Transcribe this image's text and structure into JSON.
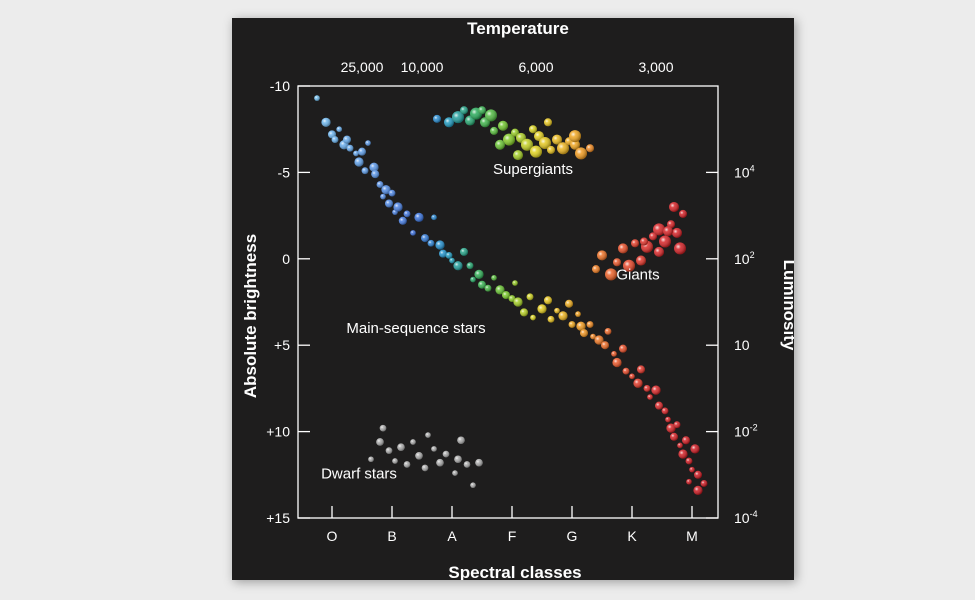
{
  "chart_data": {
    "type": "scatter",
    "top_title": "Temperature",
    "bottom_title": "Spectral classes",
    "left_title": "Absolute brightness",
    "right_title": "Luminosity",
    "magnitude_range": [
      -10,
      15
    ],
    "magnitude_ticks": [
      {
        "value": -10,
        "label": "-10"
      },
      {
        "value": -5,
        "label": "-5"
      },
      {
        "value": 0,
        "label": "0"
      },
      {
        "value": 5,
        "label": "+5"
      },
      {
        "value": 10,
        "label": "+10"
      },
      {
        "value": 15,
        "label": "+15"
      }
    ],
    "luminosity_ticks": [
      {
        "magnitude": -5,
        "base": "10",
        "exp": "4"
      },
      {
        "magnitude": 0,
        "base": "10",
        "exp": "2"
      },
      {
        "magnitude": 5,
        "base": "10",
        "exp": ""
      },
      {
        "magnitude": 10,
        "base": "10",
        "exp": "-2"
      },
      {
        "magnitude": 15,
        "base": "10",
        "exp": "-4"
      }
    ],
    "class_range": [
      0,
      6.5
    ],
    "spectral_classes": [
      {
        "label": "O",
        "pos": 0.5
      },
      {
        "label": "B",
        "pos": 1.5
      },
      {
        "label": "A",
        "pos": 2.5
      },
      {
        "label": "F",
        "pos": 3.5
      },
      {
        "label": "G",
        "pos": 4.5
      },
      {
        "label": "K",
        "pos": 5.5
      },
      {
        "label": "M",
        "pos": 6.5
      }
    ],
    "temperature_ticks": [
      {
        "label": "25,000",
        "pos": 1.0
      },
      {
        "label": "10,000",
        "pos": 2.0
      },
      {
        "label": "6,000",
        "pos": 3.9
      },
      {
        "label": "3,000",
        "pos": 5.9
      }
    ],
    "groups": [
      {
        "name": "Supergiants",
        "label_pos": [
          3.85,
          -4.9
        ]
      },
      {
        "name": "Giants",
        "label_pos": [
          5.6,
          1.2
        ]
      },
      {
        "name": "Main-sequence stars",
        "label_pos": [
          1.9,
          4.3
        ]
      },
      {
        "name": "Dwarf stars",
        "label_pos": [
          0.95,
          12.7
        ]
      }
    ],
    "series": [
      {
        "name": "Main-sequence stars",
        "points": [
          [
            0.25,
            -9.3
          ],
          [
            0.4,
            -7.9
          ],
          [
            0.5,
            -7.2
          ],
          [
            0.55,
            -6.9
          ],
          [
            0.62,
            -7.5
          ],
          [
            0.7,
            -6.6
          ],
          [
            0.75,
            -6.9
          ],
          [
            0.8,
            -6.4
          ],
          [
            0.9,
            -6.1
          ],
          [
            0.95,
            -5.6
          ],
          [
            1.0,
            -6.2
          ],
          [
            1.05,
            -5.1
          ],
          [
            1.1,
            -6.7
          ],
          [
            1.2,
            -5.3
          ],
          [
            1.22,
            -4.9
          ],
          [
            1.3,
            -4.3
          ],
          [
            1.35,
            -3.6
          ],
          [
            1.4,
            -4.0
          ],
          [
            1.45,
            -3.2
          ],
          [
            1.5,
            -3.8
          ],
          [
            1.55,
            -2.7
          ],
          [
            1.6,
            -3.0
          ],
          [
            1.68,
            -2.2
          ],
          [
            1.75,
            -2.6
          ],
          [
            1.85,
            -1.5
          ],
          [
            1.95,
            -2.4
          ],
          [
            2.05,
            -1.2
          ],
          [
            2.15,
            -0.9
          ],
          [
            2.2,
            -2.4
          ],
          [
            2.3,
            -0.8
          ],
          [
            2.35,
            -0.3
          ],
          [
            2.45,
            -0.2
          ],
          [
            2.5,
            0.1
          ],
          [
            2.6,
            0.4
          ],
          [
            2.7,
            -0.4
          ],
          [
            2.8,
            0.4
          ],
          [
            2.85,
            1.2
          ],
          [
            2.95,
            0.9
          ],
          [
            3.0,
            1.5
          ],
          [
            3.1,
            1.7
          ],
          [
            3.2,
            1.1
          ],
          [
            3.3,
            1.8
          ],
          [
            3.4,
            2.1
          ],
          [
            3.5,
            2.3
          ],
          [
            3.55,
            1.4
          ],
          [
            3.6,
            2.5
          ],
          [
            3.7,
            3.1
          ],
          [
            3.8,
            2.2
          ],
          [
            3.85,
            3.4
          ],
          [
            4.0,
            2.9
          ],
          [
            4.1,
            2.4
          ],
          [
            4.15,
            3.5
          ],
          [
            4.25,
            3.0
          ],
          [
            4.35,
            3.3
          ],
          [
            4.45,
            2.6
          ],
          [
            4.5,
            3.8
          ],
          [
            4.6,
            3.2
          ],
          [
            4.65,
            3.9
          ],
          [
            4.7,
            4.3
          ],
          [
            4.8,
            3.8
          ],
          [
            4.85,
            4.5
          ],
          [
            4.95,
            4.7
          ],
          [
            5.05,
            5.0
          ],
          [
            5.1,
            4.2
          ],
          [
            5.2,
            5.5
          ],
          [
            5.25,
            6.0
          ],
          [
            5.35,
            5.2
          ],
          [
            5.4,
            6.5
          ],
          [
            5.5,
            6.8
          ],
          [
            5.6,
            7.2
          ],
          [
            5.65,
            6.4
          ],
          [
            5.75,
            7.5
          ],
          [
            5.8,
            8.0
          ],
          [
            5.9,
            7.6
          ],
          [
            5.95,
            8.5
          ],
          [
            6.05,
            8.8
          ],
          [
            6.1,
            9.3
          ],
          [
            6.15,
            9.8
          ],
          [
            6.2,
            10.3
          ],
          [
            6.25,
            9.6
          ],
          [
            6.3,
            10.8
          ],
          [
            6.35,
            11.3
          ],
          [
            6.4,
            10.5
          ],
          [
            6.45,
            11.7
          ],
          [
            6.5,
            12.2
          ],
          [
            6.55,
            11.0
          ],
          [
            6.6,
            12.5
          ],
          [
            6.7,
            13.0
          ],
          [
            6.45,
            12.9
          ],
          [
            6.6,
            13.4
          ]
        ]
      },
      {
        "name": "Supergiants",
        "points": [
          [
            2.25,
            -8.1
          ],
          [
            2.45,
            -7.9
          ],
          [
            2.6,
            -8.2
          ],
          [
            2.7,
            -8.6
          ],
          [
            2.8,
            -8.0
          ],
          [
            2.9,
            -8.4
          ],
          [
            3.0,
            -8.6
          ],
          [
            3.05,
            -7.9
          ],
          [
            3.15,
            -8.3
          ],
          [
            3.2,
            -7.4
          ],
          [
            3.35,
            -7.7
          ],
          [
            3.45,
            -6.9
          ],
          [
            3.55,
            -7.3
          ],
          [
            3.65,
            -7.0
          ],
          [
            3.75,
            -6.6
          ],
          [
            3.85,
            -7.5
          ],
          [
            3.95,
            -7.1
          ],
          [
            4.05,
            -6.7
          ],
          [
            4.15,
            -6.3
          ],
          [
            4.25,
            -6.9
          ],
          [
            4.35,
            -6.4
          ],
          [
            4.45,
            -6.8
          ],
          [
            4.55,
            -6.6
          ],
          [
            4.65,
            -6.1
          ],
          [
            4.8,
            -6.4
          ],
          [
            3.6,
            -6.0
          ],
          [
            3.9,
            -6.2
          ],
          [
            4.1,
            -7.9
          ],
          [
            3.3,
            -6.6
          ],
          [
            4.55,
            -7.1
          ]
        ]
      },
      {
        "name": "Giants",
        "points": [
          [
            4.9,
            0.6
          ],
          [
            5.0,
            -0.2
          ],
          [
            5.15,
            0.9
          ],
          [
            5.25,
            0.2
          ],
          [
            5.35,
            -0.6
          ],
          [
            5.45,
            0.4
          ],
          [
            5.55,
            -0.9
          ],
          [
            5.65,
            0.1
          ],
          [
            5.75,
            -0.7
          ],
          [
            5.85,
            -1.3
          ],
          [
            5.95,
            -0.4
          ],
          [
            6.05,
            -1.0
          ],
          [
            6.15,
            -2.0
          ],
          [
            6.25,
            -1.5
          ],
          [
            6.3,
            -0.6
          ],
          [
            6.35,
            -2.6
          ],
          [
            6.2,
            -3.0
          ],
          [
            5.95,
            -1.7
          ],
          [
            5.7,
            -1.0
          ],
          [
            6.1,
            -1.6
          ]
        ]
      },
      {
        "name": "Dwarf stars",
        "points": [
          [
            1.15,
            11.6
          ],
          [
            1.3,
            10.6
          ],
          [
            1.45,
            11.1
          ],
          [
            1.55,
            11.7
          ],
          [
            1.65,
            10.9
          ],
          [
            1.75,
            11.9
          ],
          [
            1.85,
            10.6
          ],
          [
            1.95,
            11.4
          ],
          [
            2.05,
            12.1
          ],
          [
            2.2,
            11.0
          ],
          [
            2.3,
            11.8
          ],
          [
            2.4,
            11.3
          ],
          [
            2.55,
            12.4
          ],
          [
            2.65,
            10.5
          ],
          [
            2.75,
            11.9
          ],
          [
            2.85,
            13.1
          ],
          [
            2.95,
            11.8
          ],
          [
            1.35,
            9.8
          ],
          [
            2.1,
            10.2
          ],
          [
            2.6,
            11.6
          ]
        ]
      }
    ]
  }
}
